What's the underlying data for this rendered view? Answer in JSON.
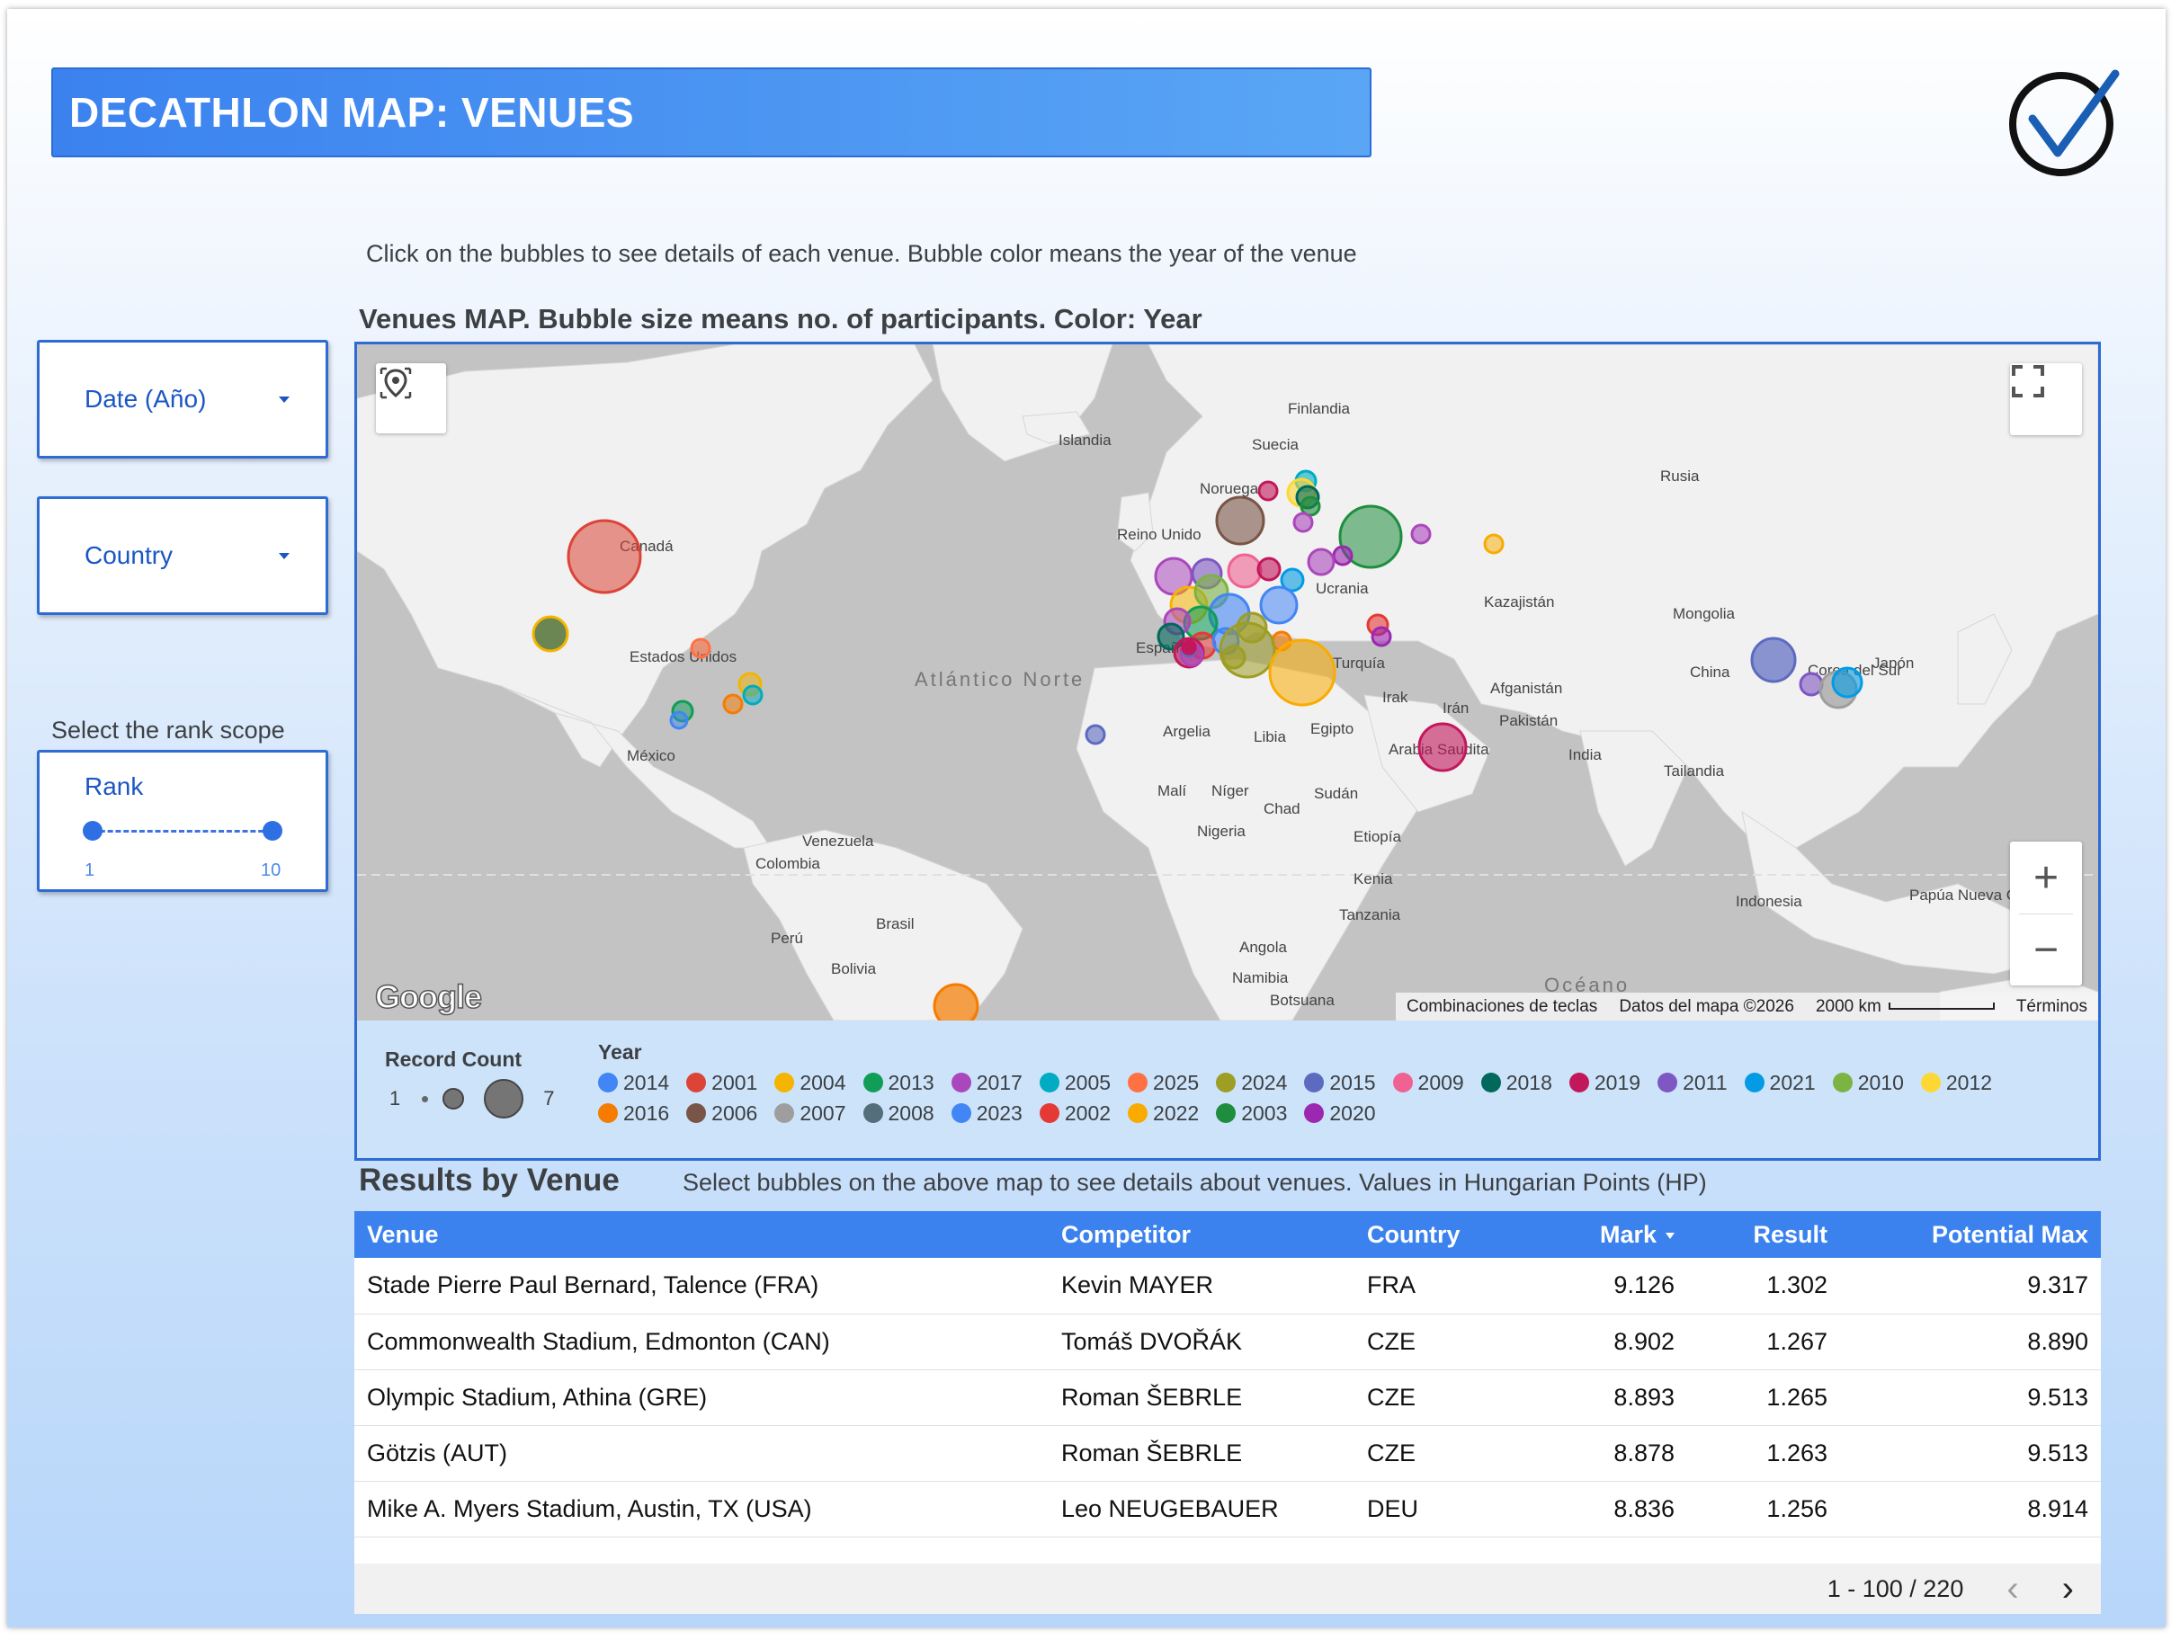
{
  "header": {
    "title": "DECATHLON MAP: VENUES"
  },
  "instruction": "Click on the bubbles to see details of each venue. Bubble color means the year of the venue",
  "map_title": "Venues MAP. Bubble size means no. of participants. Color: Year",
  "filters": {
    "date_label": "Date (Año)",
    "country_label": "Country",
    "rank_scope_label": "Select the rank scope",
    "rank_title": "Rank",
    "rank_min": "1",
    "rank_max": "10"
  },
  "map": {
    "labels": {
      "canada": "Canadá",
      "usa": "Estados Unidos",
      "mexico": "México",
      "venezuela": "Venezuela",
      "colombia": "Colombia",
      "peru": "Perú",
      "brasil": "Brasil",
      "bolivia": "Bolivia",
      "islandia": "Islandia",
      "finlandia": "Finlandia",
      "suecia": "Suecia",
      "noruega": "Noruega",
      "reino_unido": "Reino Unido",
      "espana": "España",
      "ucrania": "Ucrania",
      "rusia": "Rusia",
      "kazajistan": "Kazajistán",
      "mongolia": "Mongolia",
      "china": "China",
      "japon": "Japón",
      "corea": "Corea del Sur",
      "turquia": "Turquía",
      "irak": "Irak",
      "iran": "Irán",
      "afganistan": "Afganistán",
      "pakistan": "Pakistán",
      "india": "India",
      "tailandia": "Tailandia",
      "arabia": "Arabia Saudita",
      "egipto": "Egipto",
      "libia": "Libia",
      "argelia": "Argelia",
      "mali": "Malí",
      "niger": "Níger",
      "chad": "Chad",
      "sudan": "Sudán",
      "nigeria": "Nigeria",
      "etiopia": "Etiopía",
      "kenia": "Kenia",
      "tanzania": "Tanzania",
      "angola": "Angola",
      "namibia": "Namibia",
      "botsuana": "Botsuana",
      "indonesia": "Indonesia",
      "papua": "Papúa Nueva Guinea",
      "atlantico": "Atlántico Norte",
      "oceano": "Océano"
    },
    "attribution": {
      "shortcuts": "Combinaciones de teclas",
      "data": "Datos del mapa ©2026",
      "scale": "2000 km",
      "terms": "Términos"
    },
    "google": "Google",
    "zoom_in": "+",
    "zoom_out": "−"
  },
  "legend": {
    "record_count_title": "Record Count",
    "rc_min": "1",
    "rc_max": "7",
    "year_title": "Year",
    "years": [
      {
        "year": "2014",
        "color": "#4285f4"
      },
      {
        "year": "2001",
        "color": "#db4437"
      },
      {
        "year": "2004",
        "color": "#f4b400"
      },
      {
        "year": "2013",
        "color": "#0f9d58"
      },
      {
        "year": "2017",
        "color": "#ab47bc"
      },
      {
        "year": "2005",
        "color": "#00acc1"
      },
      {
        "year": "2025",
        "color": "#ff7043"
      },
      {
        "year": "2024",
        "color": "#9e9d24"
      },
      {
        "year": "2015",
        "color": "#5c6bc0"
      },
      {
        "year": "2009",
        "color": "#f06292"
      },
      {
        "year": "2018",
        "color": "#00695c"
      },
      {
        "year": "2019",
        "color": "#c2185b"
      },
      {
        "year": "2011",
        "color": "#7e57c2"
      },
      {
        "year": "2021",
        "color": "#039be5"
      },
      {
        "year": "2010",
        "color": "#7cb342"
      },
      {
        "year": "2012",
        "color": "#fdd835"
      },
      {
        "year": "2016",
        "color": "#f57c00"
      },
      {
        "year": "2006",
        "color": "#795548"
      },
      {
        "year": "2007",
        "color": "#9e9e9e"
      },
      {
        "year": "2008",
        "color": "#546e7a"
      },
      {
        "year": "2023",
        "color": "#4285f4"
      },
      {
        "year": "2002",
        "color": "#e53935"
      },
      {
        "year": "2022",
        "color": "#f9ab00"
      },
      {
        "year": "2003",
        "color": "#1e8e3e"
      },
      {
        "year": "2020",
        "color": "#9c27b0"
      }
    ]
  },
  "results": {
    "title": "Results by Venue",
    "subtitle": "Select  bubbles on the above map to see details about venues. Values in Hungarian Points (HP)",
    "columns": {
      "venue": "Venue",
      "competitor": "Competitor",
      "country": "Country",
      "mark": "Mark",
      "result": "Result",
      "potential": "Potential  Max"
    },
    "rows": [
      {
        "venue": "Stade Pierre Paul Bernard, Talence (FRA)",
        "competitor": "Kevin MAYER",
        "country": "FRA",
        "mark": "9.126",
        "result": "1.302",
        "potential": "9.317"
      },
      {
        "venue": "Commonwealth Stadium, Edmonton (CAN)",
        "competitor": "Tomáš DVOŘÁK",
        "country": "CZE",
        "mark": "8.902",
        "result": "1.267",
        "potential": "8.890"
      },
      {
        "venue": "Olympic Stadium, Athina (GRE)",
        "competitor": "Roman ŠEBRLE",
        "country": "CZE",
        "mark": "8.893",
        "result": "1.265",
        "potential": "9.513"
      },
      {
        "venue": "Götzis (AUT)",
        "competitor": "Roman ŠEBRLE",
        "country": "CZE",
        "mark": "8.878",
        "result": "1.263",
        "potential": "9.513"
      },
      {
        "venue": "Mike A. Myers Stadium, Austin, TX (USA)",
        "competitor": "Leo NEUGEBAUER",
        "country": "DEU",
        "mark": "8.836",
        "result": "1.256",
        "potential": "8.914"
      }
    ],
    "pagination": "1 - 100 / 220",
    "prev": "‹",
    "next": "›"
  }
}
